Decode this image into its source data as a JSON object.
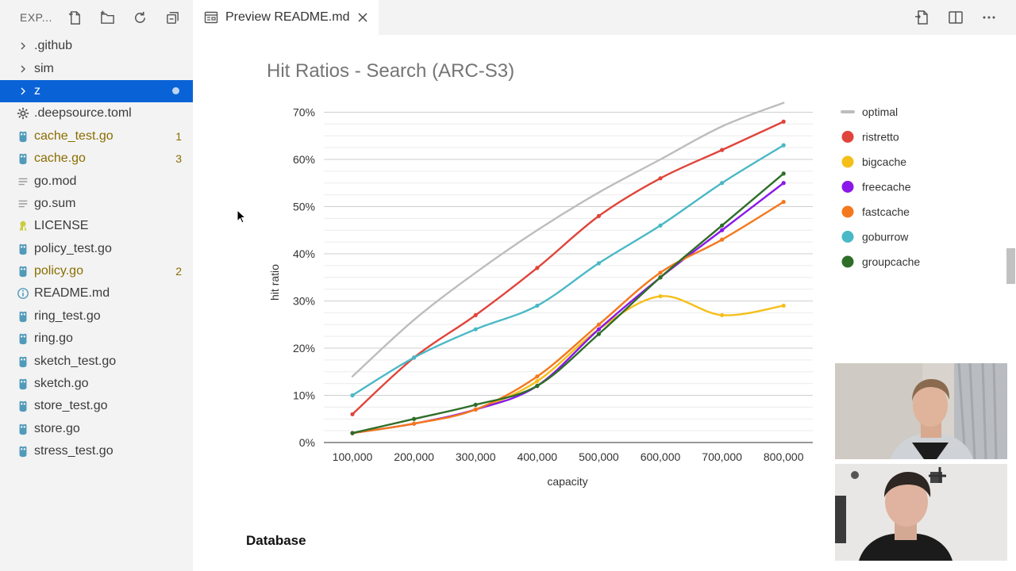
{
  "sidebar": {
    "title": "EXP...",
    "files": [
      {
        "name": ".github",
        "kind": "folder",
        "badge": ""
      },
      {
        "name": "sim",
        "kind": "folder",
        "badge": ""
      },
      {
        "name": "z",
        "kind": "folder",
        "badge": "",
        "selected": true
      },
      {
        "name": ".deepsource.toml",
        "kind": "gear",
        "badge": ""
      },
      {
        "name": "cache_test.go",
        "kind": "go",
        "badge": "1",
        "warn": true
      },
      {
        "name": "cache.go",
        "kind": "go",
        "badge": "3",
        "warn": true
      },
      {
        "name": "go.mod",
        "kind": "lines",
        "badge": ""
      },
      {
        "name": "go.sum",
        "kind": "lines",
        "badge": ""
      },
      {
        "name": "LICENSE",
        "kind": "license",
        "badge": ""
      },
      {
        "name": "policy_test.go",
        "kind": "go",
        "badge": ""
      },
      {
        "name": "policy.go",
        "kind": "go",
        "badge": "2",
        "warn": true
      },
      {
        "name": "README.md",
        "kind": "info",
        "badge": ""
      },
      {
        "name": "ring_test.go",
        "kind": "go",
        "badge": ""
      },
      {
        "name": "ring.go",
        "kind": "go",
        "badge": ""
      },
      {
        "name": "sketch_test.go",
        "kind": "go",
        "badge": ""
      },
      {
        "name": "sketch.go",
        "kind": "go",
        "badge": ""
      },
      {
        "name": "store_test.go",
        "kind": "go",
        "badge": ""
      },
      {
        "name": "store.go",
        "kind": "go",
        "badge": ""
      },
      {
        "name": "stress_test.go",
        "kind": "go",
        "badge": ""
      }
    ]
  },
  "tab": {
    "label": "Preview README.md"
  },
  "preview": {
    "heading": "Database"
  },
  "colors": {
    "accent": "#0a63d6",
    "go_icon": "#519aba",
    "warning_text": "#8a6d00"
  },
  "chart_data": {
    "type": "line",
    "title": "Hit Ratios - Search (ARC-S3)",
    "xlabel": "capacity",
    "ylabel": "hit ratio",
    "categories": [
      "100,000",
      "200,000",
      "300,000",
      "400,000",
      "500,000",
      "600,000",
      "700,000",
      "800,000"
    ],
    "y_ticks": [
      "0%",
      "10%",
      "20%",
      "30%",
      "40%",
      "50%",
      "60%",
      "70%"
    ],
    "ylim": [
      0,
      70
    ],
    "series": [
      {
        "name": "optimal",
        "color": "#bdbdbd",
        "values": [
          14,
          26,
          36,
          45,
          53,
          60,
          67,
          72
        ],
        "markers": false
      },
      {
        "name": "ristretto",
        "color": "#e0443a",
        "values": [
          6,
          18,
          27,
          37,
          48,
          56,
          62,
          68
        ]
      },
      {
        "name": "bigcache",
        "color": "#f5bf1a",
        "values": [
          2,
          4,
          7,
          13,
          24,
          31,
          27,
          29
        ]
      },
      {
        "name": "freecache",
        "color": "#8b18e8",
        "values": [
          2,
          4,
          7,
          12,
          24,
          35,
          45,
          55
        ]
      },
      {
        "name": "fastcache",
        "color": "#f4781d",
        "values": [
          2,
          4,
          7,
          14,
          25,
          36,
          43,
          51
        ]
      },
      {
        "name": "goburrow",
        "color": "#4ab8c6",
        "values": [
          10,
          18,
          24,
          29,
          38,
          46,
          55,
          63
        ]
      },
      {
        "name": "groupcache",
        "color": "#2e6e28",
        "values": [
          2,
          5,
          8,
          12,
          23,
          35,
          46,
          57
        ]
      }
    ]
  }
}
